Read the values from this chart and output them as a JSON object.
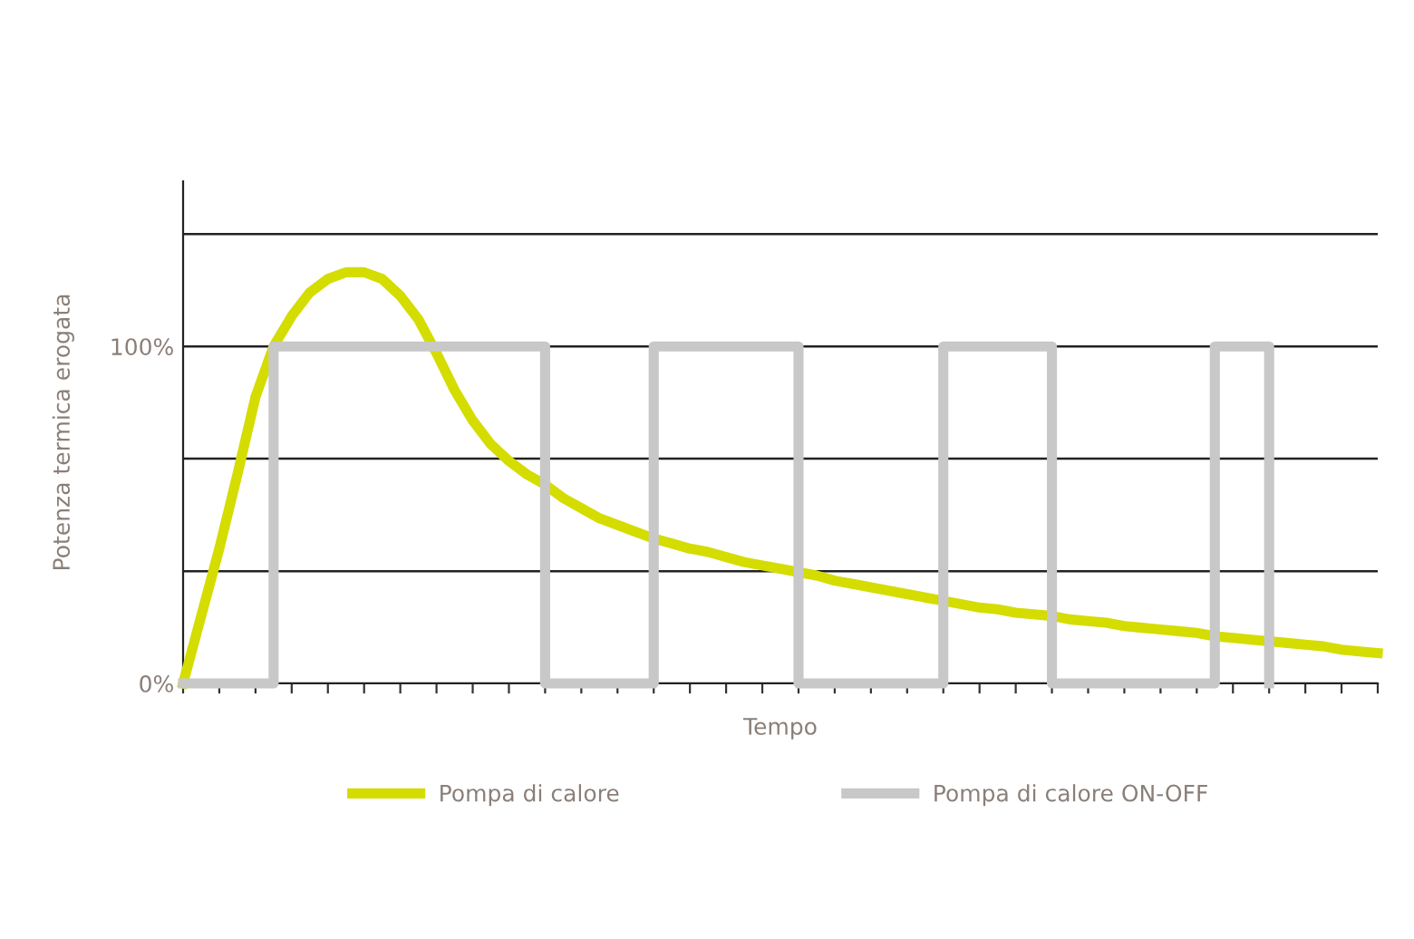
{
  "chart_data": {
    "type": "line",
    "xlabel": "Tempo",
    "ylabel": "Potenza termica erogata",
    "categories": [
      null,
      null,
      null,
      null,
      null,
      null,
      null,
      null,
      null,
      null,
      null,
      null,
      null,
      null,
      null,
      null,
      null,
      null,
      null,
      null,
      null,
      null,
      null,
      null,
      null,
      null,
      null,
      null,
      null,
      null,
      null,
      null,
      null,
      null,
      null,
      null,
      null,
      null,
      null,
      null,
      null,
      null,
      null,
      null,
      null,
      null,
      null,
      null,
      null,
      null,
      null,
      null,
      null,
      null,
      null,
      null,
      null,
      null,
      null,
      null,
      null,
      null,
      null,
      null,
      null,
      null,
      null
    ],
    "ylim": [
      0,
      149
    ],
    "yticks": [
      {
        "value": 0,
        "label": "0%"
      },
      {
        "value": 33.3,
        "label": null
      },
      {
        "value": 66.7,
        "label": null
      },
      {
        "value": 100,
        "label": "100%"
      },
      {
        "value": 133.3,
        "label": null
      }
    ],
    "grid": "y",
    "legend": "bottom",
    "marker": "none",
    "line_style": "solid",
    "series": [
      {
        "name": "Pompa di calore",
        "color": "#d4dc00",
        "values": [
          0,
          20,
          40,
          62,
          85,
          100,
          109,
          116,
          120,
          122,
          122,
          120,
          115,
          108,
          98,
          87,
          78,
          71,
          66,
          62,
          59,
          55,
          52,
          49,
          47,
          45,
          43,
          41.5,
          40,
          39,
          37.5,
          36,
          35,
          34,
          33,
          32,
          30.5,
          29.5,
          28.5,
          27.5,
          26.5,
          25.5,
          24.5,
          23.5,
          22.5,
          22,
          21,
          20.5,
          20,
          19,
          18.5,
          18,
          17,
          16.5,
          16,
          15.5,
          15,
          14,
          13.5,
          13,
          12.5,
          12,
          11.5,
          11,
          10,
          9.5,
          9
        ]
      },
      {
        "name": "Pompa di calore ON-OFF",
        "type": "step",
        "color": "#c8c8c8",
        "values": [
          0,
          0,
          0,
          0,
          0,
          100,
          100,
          100,
          100,
          100,
          100,
          100,
          100,
          100,
          100,
          100,
          100,
          100,
          100,
          100,
          0,
          0,
          0,
          0,
          0,
          0,
          100,
          100,
          100,
          100,
          100,
          100,
          100,
          100,
          0,
          0,
          0,
          0,
          0,
          0,
          0,
          0,
          100,
          100,
          100,
          100,
          100,
          100,
          0,
          0,
          0,
          0,
          0,
          0,
          0,
          0,
          0,
          100,
          100,
          100,
          0,
          null,
          null,
          null,
          null,
          null,
          null
        ]
      }
    ]
  }
}
